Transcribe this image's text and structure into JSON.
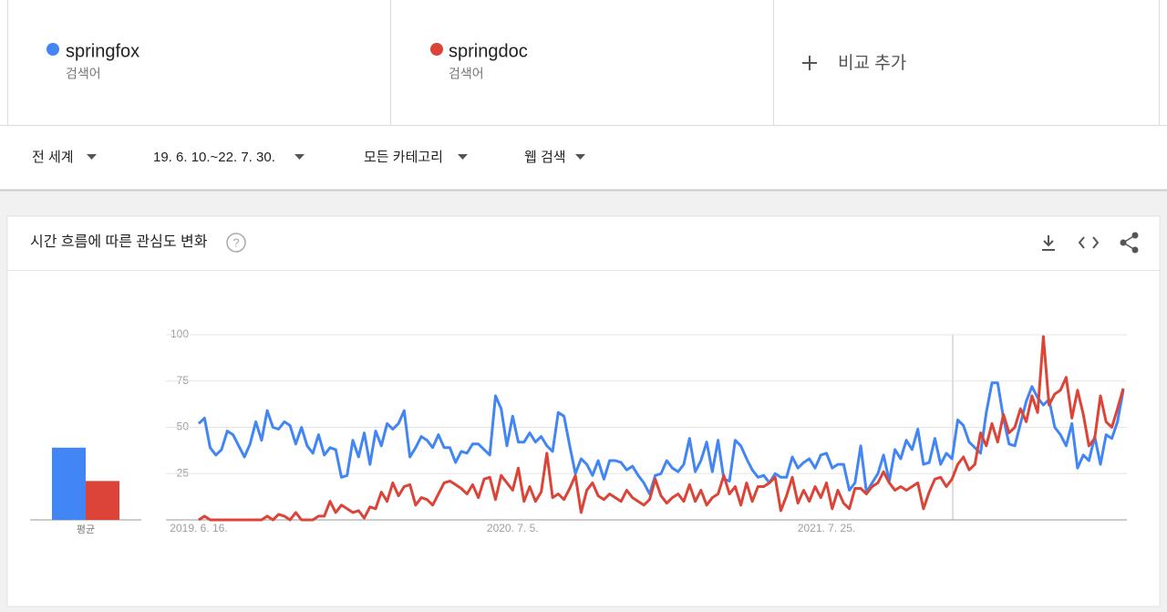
{
  "terms": [
    {
      "name": "springfox",
      "label": "검색어",
      "color": "#4285f4"
    },
    {
      "name": "springdoc",
      "label": "검색어",
      "color": "#db4437"
    }
  ],
  "add_compare": "비교 추가",
  "filters": [
    "전 세계",
    "19. 6. 10.~22. 7. 30.",
    "모든 카테고리",
    "웹 검색"
  ],
  "card_title": "시간 흐름에 따른 관심도 변화",
  "chart_data": {
    "type": "line",
    "average_label": "평균",
    "ylim": [
      0,
      100
    ],
    "yticks": [
      25,
      50,
      75,
      100
    ],
    "grid": true,
    "categories": [
      "2019. 6. 16.",
      null,
      null,
      null,
      null,
      null,
      null,
      null,
      null,
      null,
      null,
      null,
      null,
      null,
      null,
      null,
      null,
      null,
      null,
      null,
      null,
      null,
      null,
      null,
      null,
      null,
      null,
      null,
      null,
      null,
      null,
      null,
      null,
      null,
      null,
      null,
      null,
      null,
      null,
      null,
      null,
      null,
      null,
      null,
      null,
      null,
      null,
      null,
      null,
      null,
      null,
      null,
      null,
      null,
      null,
      "2020. 7. 5.",
      null,
      null,
      null,
      null,
      null,
      null,
      null,
      null,
      null,
      null,
      null,
      null,
      null,
      null,
      null,
      null,
      null,
      null,
      null,
      null,
      null,
      null,
      null,
      null,
      null,
      null,
      null,
      null,
      null,
      null,
      null,
      null,
      null,
      null,
      null,
      null,
      null,
      null,
      null,
      null,
      null,
      null,
      null,
      null,
      null,
      null,
      null,
      null,
      null,
      null,
      null,
      null,
      null,
      null,
      "2021. 7. 25.",
      null,
      null,
      null,
      null,
      null,
      null,
      null,
      null,
      null,
      null,
      null,
      null,
      null,
      null,
      null,
      null,
      null,
      null,
      null,
      null,
      null,
      null,
      null,
      null,
      null,
      null,
      null,
      null,
      null,
      null,
      null,
      null,
      null,
      null,
      null,
      null,
      null,
      null,
      null,
      null,
      null,
      null,
      null,
      null,
      null,
      null,
      null,
      null,
      null,
      null,
      null,
      null
    ],
    "series": [
      {
        "name": "springfox",
        "color": "#4285f4",
        "average": 39,
        "values": [
          52,
          55,
          39,
          35,
          38,
          48,
          46,
          40,
          34,
          41,
          53,
          43,
          59,
          50,
          49,
          53,
          51,
          41,
          50,
          40,
          36,
          46,
          35,
          39,
          38,
          23,
          24,
          43,
          34,
          47,
          30,
          48,
          40,
          52,
          49,
          52,
          59,
          34,
          39,
          45,
          43,
          39,
          46,
          39,
          39,
          31,
          37,
          36,
          41,
          41,
          38,
          35,
          67,
          60,
          40,
          56,
          42,
          42,
          47,
          42,
          45,
          40,
          37,
          58,
          56,
          40,
          25,
          33,
          30,
          24,
          32,
          22,
          32,
          32,
          31,
          27,
          29,
          24,
          20,
          14,
          24,
          25,
          32,
          28,
          26,
          30,
          44,
          26,
          32,
          42,
          26,
          43,
          22,
          21,
          43,
          40,
          33,
          27,
          23,
          24,
          20,
          25,
          23,
          23,
          34,
          28,
          31,
          33,
          28,
          35,
          36,
          28,
          30,
          30,
          16,
          20,
          40,
          15,
          20,
          25,
          35,
          21,
          38,
          33,
          43,
          38,
          49,
          30,
          31,
          44,
          30,
          36,
          33,
          54,
          51,
          42,
          39,
          36,
          58,
          74,
          74,
          55,
          41,
          40,
          52,
          64,
          72,
          66,
          62,
          65,
          50,
          46,
          40,
          52,
          28,
          35,
          32,
          45,
          30,
          46,
          44,
          53,
          70
        ]
      },
      {
        "name": "springdoc",
        "color": "#db4437",
        "average": 21,
        "values": [
          0,
          2,
          0,
          0,
          0,
          0,
          0,
          0,
          0,
          0,
          0,
          0,
          2,
          0,
          3,
          2,
          0,
          4,
          0,
          0,
          0,
          2,
          2,
          10,
          4,
          8,
          6,
          4,
          5,
          1,
          7,
          6,
          15,
          10,
          20,
          13,
          18,
          19,
          8,
          12,
          11,
          8,
          14,
          20,
          21,
          19,
          17,
          14,
          19,
          12,
          22,
          23,
          11,
          24,
          20,
          16,
          28,
          10,
          18,
          10,
          15,
          36,
          12,
          14,
          11,
          17,
          24,
          4,
          16,
          20,
          13,
          11,
          14,
          12,
          10,
          16,
          12,
          10,
          8,
          11,
          22,
          13,
          9,
          12,
          14,
          10,
          19,
          10,
          16,
          8,
          12,
          14,
          24,
          14,
          18,
          8,
          20,
          10,
          18,
          18,
          20,
          23,
          5,
          13,
          23,
          9,
          16,
          10,
          18,
          12,
          20,
          6,
          16,
          9,
          6,
          17,
          17,
          14,
          18,
          20,
          26,
          20,
          16,
          18,
          16,
          18,
          20,
          6,
          15,
          22,
          23,
          18,
          22,
          30,
          34,
          27,
          30,
          47,
          40,
          52,
          42,
          57,
          47,
          50,
          60,
          53,
          67,
          58,
          99,
          62,
          68,
          70,
          77,
          55,
          70,
          57,
          40,
          44,
          67,
          53,
          50,
          60,
          71
        ]
      }
    ]
  }
}
